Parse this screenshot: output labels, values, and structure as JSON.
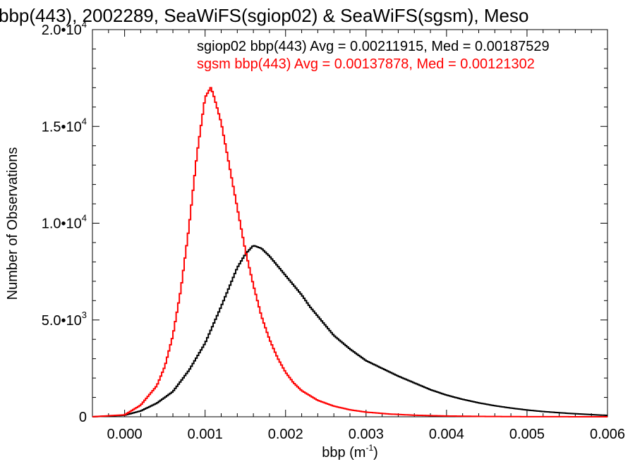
{
  "chart_data": {
    "type": "line",
    "title": "bbp(443), 2002289, SeaWiFS(sgiop02) & SeaWiFS(sgsm), Meso",
    "xlabel": "bbp (m",
    "xlabel_exp": "-1",
    "xlabel_close": ")",
    "ylabel": "Number of Observations",
    "xlim": [
      -0.0004,
      0.006
    ],
    "ylim": [
      0,
      20000
    ],
    "xticks": [
      0.0,
      0.001,
      0.002,
      0.003,
      0.004,
      0.005,
      0.006
    ],
    "xtick_labels": [
      "0.000",
      "0.001",
      "0.002",
      "0.003",
      "0.004",
      "0.005",
      "0.006"
    ],
    "yticks": [
      {
        "value": 0,
        "mantissa": "0",
        "exp": ""
      },
      {
        "value": 5000,
        "mantissa": "5.0•10",
        "exp": "3"
      },
      {
        "value": 10000,
        "mantissa": "1.0•10",
        "exp": "4"
      },
      {
        "value": 15000,
        "mantissa": "1.5•10",
        "exp": "4"
      },
      {
        "value": 20000,
        "mantissa": "2.0•10",
        "exp": "4"
      }
    ],
    "grid": false,
    "legend_position": "top-right",
    "series": [
      {
        "name": "sgiop02 bbp(443)",
        "label": "sgiop02 bbp(443) Avg = 0.00211915, Med = 0.00187529",
        "color": "#000000",
        "points": [
          [
            -0.0004,
            0
          ],
          [
            0.0,
            80
          ],
          [
            0.0002,
            300
          ],
          [
            0.0004,
            700
          ],
          [
            0.0006,
            1300
          ],
          [
            0.0008,
            2400
          ],
          [
            0.001,
            3800
          ],
          [
            0.0012,
            5700
          ],
          [
            0.0013,
            6700
          ],
          [
            0.0014,
            7700
          ],
          [
            0.0015,
            8400
          ],
          [
            0.0016,
            8850
          ],
          [
            0.0017,
            8700
          ],
          [
            0.0018,
            8300
          ],
          [
            0.0019,
            7800
          ],
          [
            0.002,
            7300
          ],
          [
            0.0021,
            6800
          ],
          [
            0.0022,
            6300
          ],
          [
            0.0023,
            5700
          ],
          [
            0.0024,
            5200
          ],
          [
            0.0025,
            4700
          ],
          [
            0.0026,
            4200
          ],
          [
            0.0028,
            3500
          ],
          [
            0.003,
            2900
          ],
          [
            0.0032,
            2500
          ],
          [
            0.0034,
            2100
          ],
          [
            0.0036,
            1750
          ],
          [
            0.0038,
            1400
          ],
          [
            0.004,
            1120
          ],
          [
            0.0042,
            900
          ],
          [
            0.0044,
            720
          ],
          [
            0.0046,
            570
          ],
          [
            0.0048,
            450
          ],
          [
            0.005,
            350
          ],
          [
            0.0052,
            270
          ],
          [
            0.0055,
            180
          ],
          [
            0.0058,
            110
          ],
          [
            0.006,
            70
          ]
        ]
      },
      {
        "name": "sgsm bbp(443)",
        "label": "sgsm bbp(443) Avg = 0.00137878, Med = 0.00121302",
        "color": "#ff0000",
        "points": [
          [
            -0.0004,
            0
          ],
          [
            0.0,
            100
          ],
          [
            0.0002,
            600
          ],
          [
            0.0004,
            1600
          ],
          [
            0.0005,
            2600
          ],
          [
            0.0006,
            4200
          ],
          [
            0.0007,
            6600
          ],
          [
            0.0008,
            9800
          ],
          [
            0.0009,
            13600
          ],
          [
            0.001,
            16500
          ],
          [
            0.00107,
            17000
          ],
          [
            0.0011,
            16700
          ],
          [
            0.0012,
            15200
          ],
          [
            0.0013,
            13000
          ],
          [
            0.0014,
            10800
          ],
          [
            0.0015,
            8600
          ],
          [
            0.0016,
            6800
          ],
          [
            0.0017,
            5200
          ],
          [
            0.0018,
            4000
          ],
          [
            0.0019,
            3050
          ],
          [
            0.002,
            2300
          ],
          [
            0.0021,
            1750
          ],
          [
            0.0022,
            1350
          ],
          [
            0.0024,
            850
          ],
          [
            0.0026,
            550
          ],
          [
            0.0028,
            360
          ],
          [
            0.003,
            240
          ],
          [
            0.0033,
            140
          ],
          [
            0.0036,
            80
          ],
          [
            0.004,
            40
          ],
          [
            0.0045,
            15
          ],
          [
            0.005,
            5
          ],
          [
            0.006,
            0
          ]
        ]
      }
    ]
  }
}
